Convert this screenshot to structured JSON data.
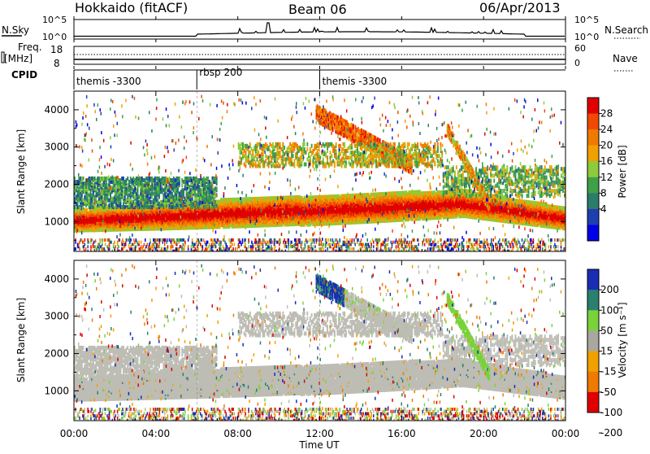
{
  "header": {
    "station": "Hokkaido (fitACF)",
    "beam": "Beam 06",
    "date": "06/Apr/2013"
  },
  "aux_panels": {
    "nsky_label": "N.Sky",
    "nsky_ticks": [
      "10^5",
      "10^0"
    ],
    "nsearch_label": "N.Search",
    "nsearch_ticks": [
      "10^5",
      "10^0"
    ],
    "freq_label_1": "Freq.",
    "freq_label_2": "[MHz]",
    "freq_ticks": [
      "18",
      "8"
    ],
    "nave_label": "Nave",
    "nave_ticks": [
      "60",
      "0"
    ],
    "cpid_label": "CPID",
    "cpid_segments": [
      {
        "label": "themis -3300",
        "start_hour": 0
      },
      {
        "label": "rbsp 200",
        "start_hour": 6
      },
      {
        "label": "themis -3300",
        "start_hour": 12
      }
    ]
  },
  "chart_data": [
    {
      "type": "heatmap",
      "name": "power",
      "xlabel": "",
      "ylabel": "Slant Range [km]",
      "xlim": [
        0,
        24
      ],
      "ylim": [
        200,
        4500
      ],
      "yticks": [
        1000,
        2000,
        3000,
        4000
      ],
      "colorbar_label": "Power [dB]",
      "colorbar_ticks": [
        "28",
        "24",
        "20",
        "16",
        "12",
        "8",
        "4"
      ],
      "colors": [
        "#0000e6",
        "#1e3fb0",
        "#2a7d6a",
        "#3fa04a",
        "#8ccc3a",
        "#f0a000",
        "#f07a00",
        "#ef4a00",
        "#e00000"
      ],
      "features": [
        {
          "desc": "main band",
          "range_km": [
            800,
            1900
          ]
        },
        {
          "desc": "upper echoes 12-20 UT",
          "range_km": [
            2200,
            4200
          ]
        }
      ]
    },
    {
      "type": "heatmap",
      "name": "velocity",
      "xlabel": "Time UT",
      "ylabel": "Slant Range [km]",
      "xlim": [
        0,
        24
      ],
      "ylim": [
        200,
        4500
      ],
      "yticks": [
        1000,
        2000,
        3000,
        4000
      ],
      "colorbar_label": "Velocity [m s⁻¹]",
      "colorbar_ticks": [
        "200",
        "100",
        "50",
        "15",
        "-15",
        "-50",
        "-100",
        "-200"
      ],
      "colors": [
        "#1a2db4",
        "#2a7f6f",
        "#79d23a",
        "#a8a8a0",
        "#f0a000",
        "#f07a00",
        "#e00000"
      ],
      "xticks": [
        "00:00",
        "04:00",
        "08:00",
        "12:00",
        "16:00",
        "20:00",
        "00:00"
      ]
    }
  ]
}
